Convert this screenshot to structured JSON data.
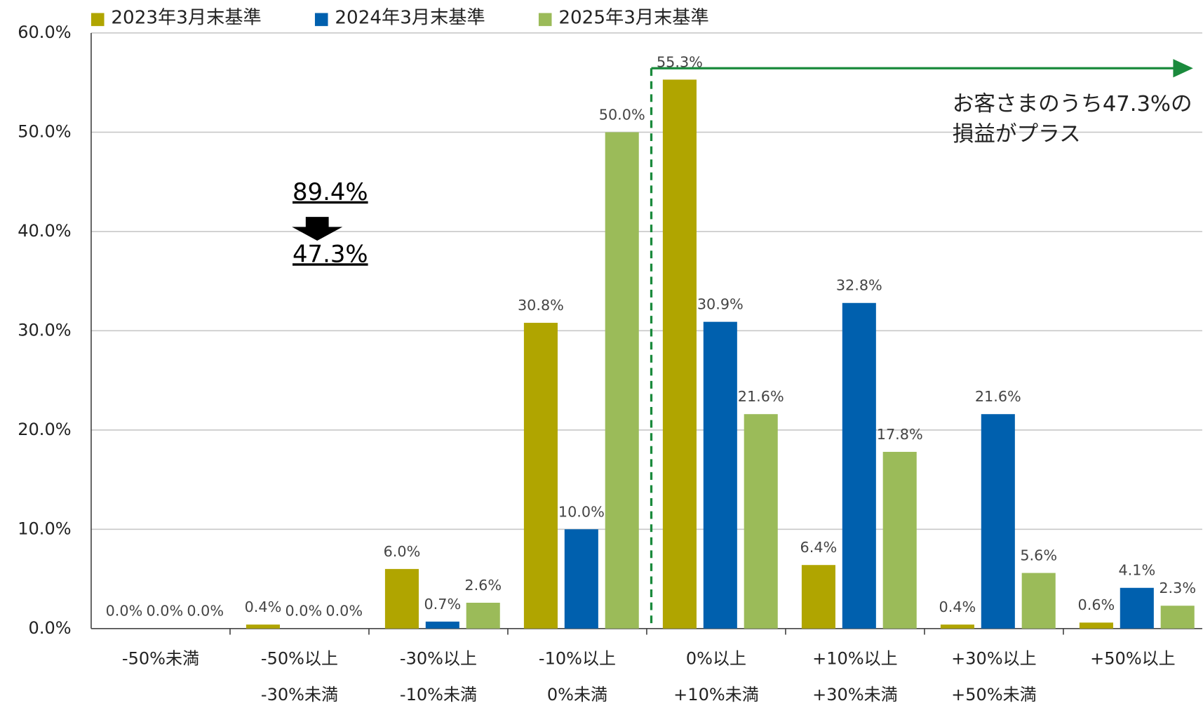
{
  "chart_data": {
    "type": "bar",
    "categories": [
      [
        "-50%未満"
      ],
      [
        "-50%以上",
        "-30%未満"
      ],
      [
        "-30%以上",
        "-10%未満"
      ],
      [
        "-10%以上",
        "0%未満"
      ],
      [
        "0%以上",
        "+10%未満"
      ],
      [
        "+10%以上",
        "+30%未満"
      ],
      [
        "+30%以上",
        "+50%未満"
      ],
      [
        "+50%以上"
      ]
    ],
    "series": [
      {
        "name": "2023年3月末基準",
        "color": "#b0a500",
        "values": [
          0.0,
          0.4,
          6.0,
          30.8,
          55.3,
          6.4,
          0.4,
          0.6
        ],
        "value_labels": [
          "0.0%",
          "0.4%",
          "6.0%",
          "30.8%",
          "55.3%",
          "6.4%",
          "0.4%",
          "0.6%"
        ]
      },
      {
        "name": "2024年3月末基準",
        "color": "#0060ae",
        "values": [
          0.0,
          0.0,
          0.7,
          10.0,
          30.9,
          32.8,
          21.6,
          4.1
        ],
        "value_labels": [
          "0.0%",
          "0.0%",
          "0.7%",
          "10.0%",
          "30.9%",
          "32.8%",
          "21.6%",
          "4.1%"
        ]
      },
      {
        "name": "2025年3月末基準",
        "color": "#9bbb59",
        "values": [
          0.0,
          0.0,
          2.6,
          50.0,
          21.6,
          17.8,
          5.6,
          2.3
        ],
        "value_labels": [
          "0.0%",
          "0.0%",
          "2.6%",
          "50.0%",
          "21.6%",
          "17.8%",
          "5.6%",
          "2.3%"
        ]
      }
    ],
    "ylim": [
      0,
      60
    ],
    "yticks": [
      {
        "value": 0,
        "label": "0.0%"
      },
      {
        "value": 10,
        "label": "10.0%"
      },
      {
        "value": 20,
        "label": "20.0%"
      },
      {
        "value": 30,
        "label": "30.0%"
      },
      {
        "value": 40,
        "label": "40.0%"
      },
      {
        "value": 50,
        "label": "50.0%"
      },
      {
        "value": 60,
        "label": "60.0%"
      }
    ],
    "grid": true,
    "legend": "top",
    "annotations": {
      "before": "89.4%",
      "after": "47.3%",
      "note": [
        "お客さまのうち47.3%の",
        "損益がプラス"
      ]
    }
  }
}
